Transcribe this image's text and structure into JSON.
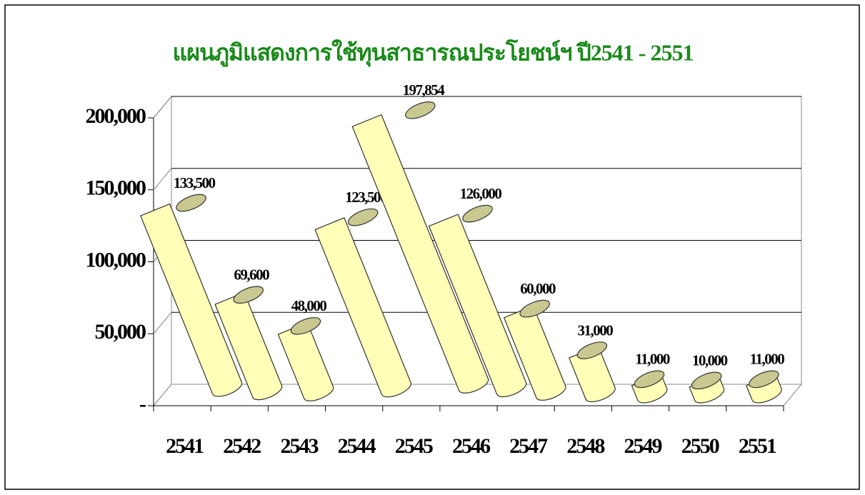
{
  "chart_data": {
    "type": "bar3d",
    "title": "แผนภูมิแสดงการใช้ทุนสาธารณประโยชน์ฯ ปี2541 - 2551",
    "categories": [
      "2541",
      "2542",
      "2543",
      "2544",
      "2545",
      "2546",
      "2547",
      "2548",
      "2549",
      "2550",
      "2551"
    ],
    "values": [
      133500,
      69600,
      48000,
      123500,
      197854,
      126000,
      60000,
      31000,
      11000,
      10000,
      11000
    ],
    "value_labels": [
      "133,500",
      "69,600",
      "48,000",
      "123,500",
      "197,854",
      "126,000",
      "60,000",
      "31,000",
      "11,000",
      "10,000",
      "11,000"
    ],
    "color": "#ffffb8",
    "title_color": "#1a8a1a",
    "ylim": [
      0,
      200000
    ],
    "yticks": [
      {
        "value": 0,
        "label": "-"
      },
      {
        "value": 50000,
        "label": "50,000"
      },
      {
        "value": 100000,
        "label": "100,000"
      },
      {
        "value": 150000,
        "label": "150,000"
      },
      {
        "value": 200000,
        "label": "200,000"
      }
    ],
    "grid": true
  }
}
